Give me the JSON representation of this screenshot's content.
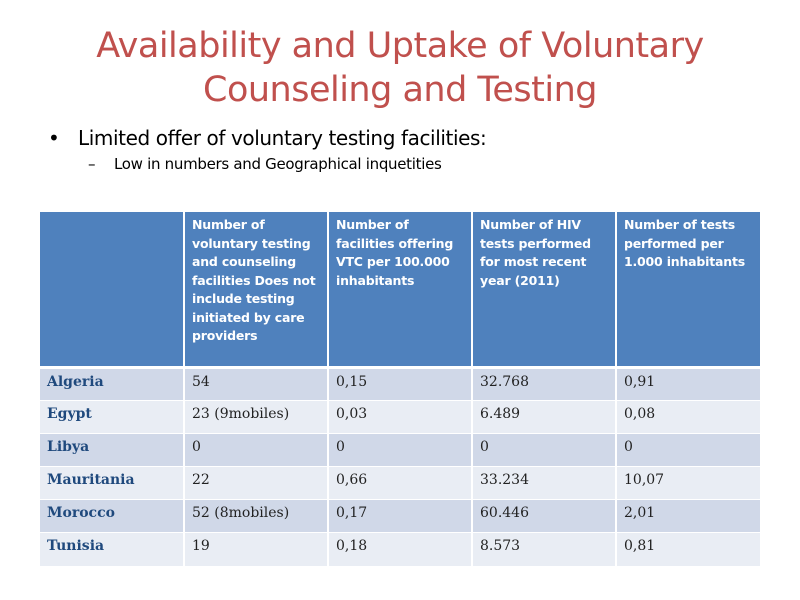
{
  "title_line1": "Availability and Uptake of Voluntary",
  "title_line2": "Counseling and Testing",
  "bullet": "Limited offer of voluntary testing facilities:",
  "sub_bullet": "Low in numbers and Geographical inquetities",
  "table": {
    "headers": [
      "",
      "Number of voluntary testing and counseling facilities Does not include testing initiated by care providers",
      "Number of facilities offering VTC per 100.000 inhabitants",
      "Number of HIV tests performed for most recent year (2011)",
      "Number of tests performed per 1.000 inhabitants"
    ],
    "rows": [
      [
        "Algeria",
        "54",
        "0,15",
        "32.768",
        "0,91"
      ],
      [
        "Egypt",
        "23  (9mobiles)",
        "0,03",
        "6.489",
        "0,08"
      ],
      [
        "Libya",
        "0",
        "0",
        "0",
        "0"
      ],
      [
        "Mauritania",
        "22",
        "0,66",
        "33.234",
        "10,07"
      ],
      [
        "Morocco",
        "52 (8mobiles)",
        "0,17",
        "60.446",
        "2,01"
      ],
      [
        "Tunisia",
        "19",
        "0,18",
        "8.573",
        "0,81"
      ]
    ]
  }
}
